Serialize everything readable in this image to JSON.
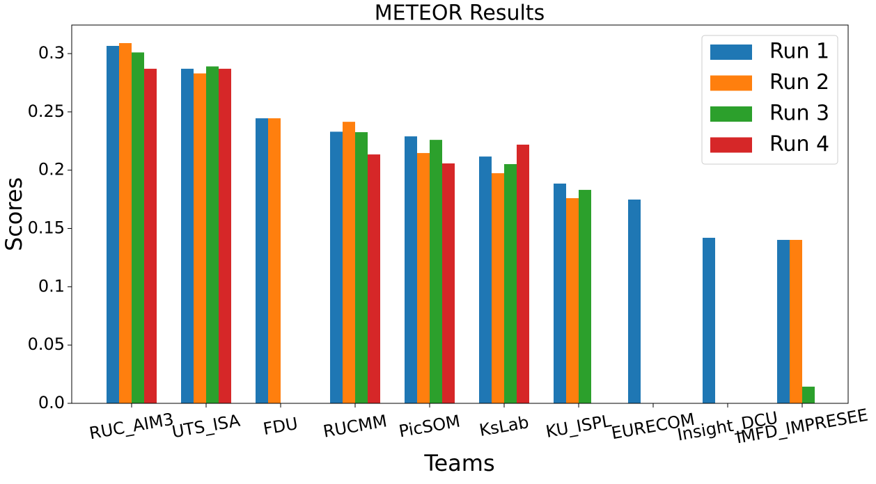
{
  "chart_data": {
    "type": "bar",
    "title": "METEOR Results",
    "x_label": "Teams",
    "y_label": "Scores",
    "categories": [
      "RUC_AIM3",
      "UTS_ISA",
      "FDU",
      "RUCMM",
      "PicSOM",
      "KsLab",
      "KU_ISPL",
      "EURECOM",
      "Insight_DCU",
      "IMFD_IMPRESEE"
    ],
    "series": [
      {
        "name": "Run 1",
        "color": "#1f77b4",
        "values": [
          0.3066,
          0.287,
          0.2445,
          0.233,
          0.229,
          0.2117,
          0.1885,
          0.1748,
          0.142,
          0.1402
        ]
      },
      {
        "name": "Run 2",
        "color": "#ff7f0e",
        "values": [
          0.309,
          0.283,
          0.2445,
          0.2415,
          0.2147,
          0.1974,
          0.176,
          null,
          null,
          0.1402
        ]
      },
      {
        "name": "Run 3",
        "color": "#2ca02c",
        "values": [
          0.301,
          0.289,
          null,
          0.2326,
          0.226,
          0.2052,
          0.1831,
          null,
          null,
          0.0143
        ]
      },
      {
        "name": "Run 4",
        "color": "#d62728",
        "values": [
          0.287,
          0.287,
          null,
          0.2135,
          0.2058,
          0.2219,
          null,
          null,
          null,
          null
        ]
      }
    ],
    "ylim": [
      0,
      0.3245
    ],
    "yticks": [
      {
        "value": 0,
        "label": "0.0"
      },
      0.05,
      0.1,
      0.15,
      0.2,
      0.25,
      0.3
    ],
    "legend": "upper-right"
  }
}
